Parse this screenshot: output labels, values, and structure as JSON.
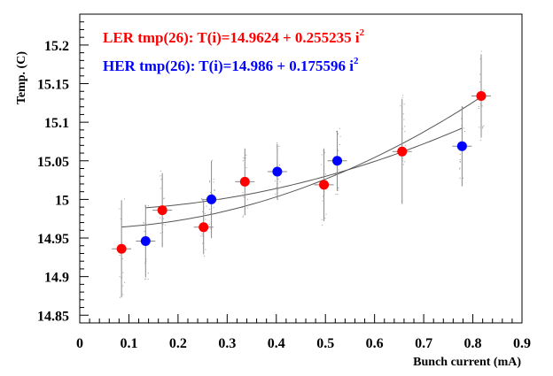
{
  "chart_data": {
    "type": "scatter",
    "xlabel": "Bunch current (mA)",
    "ylabel": "Temp. (C)",
    "xlim": [
      0,
      0.9
    ],
    "ylim": [
      14.84,
      15.24
    ],
    "x_ticks": [
      "0",
      "0.1",
      "0.2",
      "0.3",
      "0.4",
      "0.5",
      "0.6",
      "0.7",
      "0.8",
      "0.9"
    ],
    "y_ticks": [
      "14.85",
      "14.9",
      "14.95",
      "15",
      "15.05",
      "15.1",
      "15.15",
      "15.2"
    ],
    "grid": false,
    "series": [
      {
        "name": "LER tmp(26): T(i)=14.9624 + 0.255235 i",
        "name_exponent": "2",
        "color": "#ff0000",
        "fit": {
          "a": 14.9624,
          "b": 0.255235
        },
        "points": [
          {
            "x": 0.085,
            "y": 14.936,
            "err": 0.063
          },
          {
            "x": 0.168,
            "y": 14.986,
            "err": 0.048
          },
          {
            "x": 0.252,
            "y": 14.964,
            "err": 0.035
          },
          {
            "x": 0.336,
            "y": 15.023,
            "err": 0.043
          },
          {
            "x": 0.497,
            "y": 15.019,
            "err": 0.047
          },
          {
            "x": 0.656,
            "y": 15.062,
            "err": 0.068
          },
          {
            "x": 0.817,
            "y": 15.134,
            "err": 0.054
          }
        ]
      },
      {
        "name": "HER tmp(26): T(i)=14.986 + 0.175596 i",
        "name_exponent": "2",
        "color": "#0000ff",
        "fit": {
          "a": 14.986,
          "b": 0.175596
        },
        "points": [
          {
            "x": 0.134,
            "y": 14.946,
            "err": 0.047
          },
          {
            "x": 0.268,
            "y": 15.0,
            "err": 0.05
          },
          {
            "x": 0.402,
            "y": 15.036,
            "err": 0.036
          },
          {
            "x": 0.524,
            "y": 15.05,
            "err": 0.039
          },
          {
            "x": 0.778,
            "y": 15.069,
            "err": 0.052
          }
        ]
      }
    ]
  }
}
